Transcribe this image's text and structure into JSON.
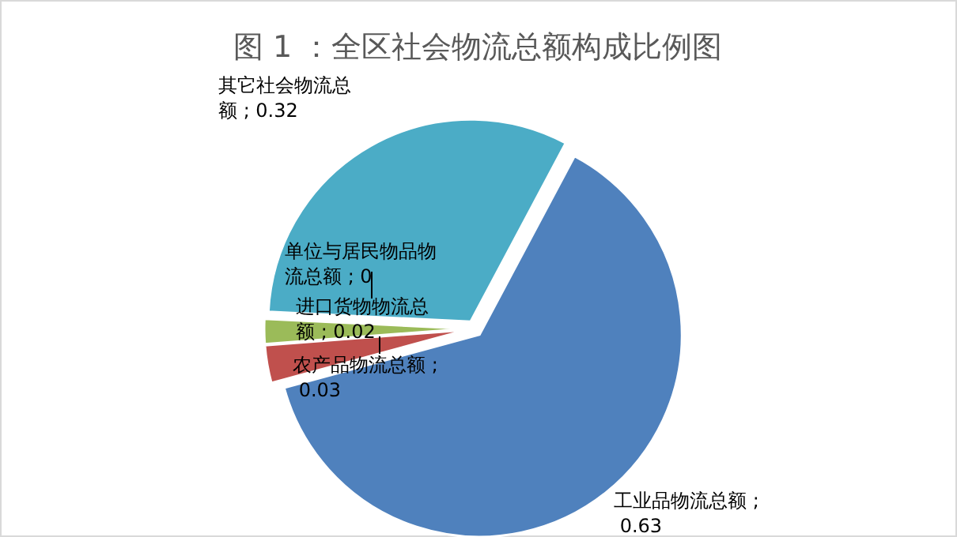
{
  "chart_data": {
    "type": "pie",
    "title": "图 1 ：全区社会物流总额构成比例图",
    "categories": [
      "工业品物流总额",
      "农产品物流总额",
      "进口货物物流总额",
      "单位与居民物品物流总额",
      "其它社会物流总额"
    ],
    "values": [
      0.63,
      0.03,
      0.02,
      0,
      0.32
    ],
    "value_labels": [
      "; 0.63",
      "; 0.03",
      "; 0.02",
      "; 0",
      "; 0.32"
    ],
    "colors": [
      "#4f81bd",
      "#c0504d",
      "#9bbb59",
      "#8064a2",
      "#4bacc6"
    ]
  }
}
